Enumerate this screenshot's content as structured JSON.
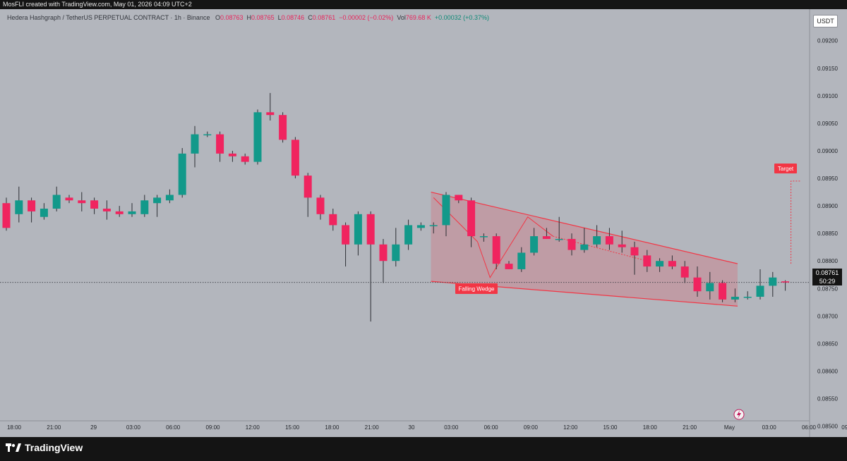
{
  "header": {
    "created_text": "MosFLI created with TradingView.com, May 01, 2026 04:09 UTC+2"
  },
  "legend": {
    "symbol": "Hedera Hashgraph / TetherUS PERPETUAL CONTRACT · 1h · Binance",
    "o_label": "O",
    "o_value": "0.08763",
    "h_label": "H",
    "h_value": "0.08765",
    "l_label": "L",
    "l_value": "0.08746",
    "c_label": "C",
    "c_value": "0.08761",
    "change": "−0.00002 (−0.02%)",
    "vol_label": "Vol",
    "vol_value": "769.68 K",
    "extra": "+0.00032 (+0.37%)"
  },
  "currency_button": "USDT",
  "price_tag": {
    "price": "0.08761",
    "countdown": "50:29"
  },
  "brand": {
    "name": "TradingView"
  },
  "colors": {
    "up": "#12998a",
    "down": "#f0245f",
    "wedge_line": "#f23645",
    "background": "#b3b6bd"
  },
  "chart_data": {
    "type": "candlestick",
    "y_ticks": [
      "0.09200",
      "0.09150",
      "0.09100",
      "0.09050",
      "0.09000",
      "0.08950",
      "0.08900",
      "0.08850",
      "0.08800",
      "0.08750",
      "0.08700",
      "0.08650",
      "0.08600",
      "0.08550",
      "0.08500"
    ],
    "x_ticks": [
      "18:00",
      "21:00",
      "29",
      "03:00",
      "06:00",
      "09:00",
      "12:00",
      "15:00",
      "18:00",
      "21:00",
      "30",
      "03:00",
      "06:00",
      "09:00",
      "12:00",
      "15:00",
      "18:00",
      "21:00",
      "May",
      "03:00",
      "06:00",
      "09:00"
    ],
    "ylim": [
      0.08488,
      0.09238
    ],
    "last_price": 0.08761,
    "candles": [
      [
        0.08905,
        0.08915,
        0.08855,
        0.0886
      ],
      [
        0.08885,
        0.08935,
        0.0887,
        0.0891
      ],
      [
        0.0891,
        0.08915,
        0.0887,
        0.0889
      ],
      [
        0.0888,
        0.08905,
        0.08875,
        0.08895
      ],
      [
        0.08895,
        0.08935,
        0.0889,
        0.0892
      ],
      [
        0.08915,
        0.0892,
        0.08905,
        0.0891
      ],
      [
        0.0891,
        0.08925,
        0.0889,
        0.08905
      ],
      [
        0.0891,
        0.08915,
        0.08885,
        0.08895
      ],
      [
        0.08895,
        0.0891,
        0.08875,
        0.0889
      ],
      [
        0.0889,
        0.089,
        0.0888,
        0.08885
      ],
      [
        0.08885,
        0.08905,
        0.0888,
        0.0889
      ],
      [
        0.08885,
        0.0892,
        0.0888,
        0.0891
      ],
      [
        0.08905,
        0.0892,
        0.0888,
        0.08915
      ],
      [
        0.0891,
        0.0893,
        0.08905,
        0.0892
      ],
      [
        0.0892,
        0.09005,
        0.08915,
        0.08995
      ],
      [
        0.08995,
        0.09045,
        0.0897,
        0.0903
      ],
      [
        0.0903,
        0.09035,
        0.09025,
        0.0903
      ],
      [
        0.0903,
        0.09035,
        0.0898,
        0.08995
      ],
      [
        0.08995,
        0.09,
        0.0898,
        0.0899
      ],
      [
        0.0899,
        0.08995,
        0.08975,
        0.0898
      ],
      [
        0.0898,
        0.09075,
        0.08975,
        0.0907
      ],
      [
        0.0907,
        0.09105,
        0.09055,
        0.09065
      ],
      [
        0.09065,
        0.0907,
        0.09015,
        0.0902
      ],
      [
        0.0902,
        0.09025,
        0.0895,
        0.08955
      ],
      [
        0.08955,
        0.0896,
        0.0888,
        0.08915
      ],
      [
        0.08915,
        0.0892,
        0.08875,
        0.08885
      ],
      [
        0.08885,
        0.08895,
        0.08855,
        0.08865
      ],
      [
        0.08865,
        0.0887,
        0.0879,
        0.0883
      ],
      [
        0.0883,
        0.0889,
        0.0881,
        0.08885
      ],
      [
        0.08885,
        0.0889,
        0.0869,
        0.0883
      ],
      [
        0.0883,
        0.0884,
        0.0876,
        0.088
      ],
      [
        0.088,
        0.0886,
        0.0879,
        0.0883
      ],
      [
        0.0883,
        0.08875,
        0.0882,
        0.08865
      ],
      [
        0.0886,
        0.0887,
        0.08855,
        0.08865
      ],
      [
        0.08865,
        0.0887,
        0.0885,
        0.08865
      ],
      [
        0.08865,
        0.08925,
        0.08845,
        0.0892
      ],
      [
        0.0892,
        0.0892,
        0.08905,
        0.0891
      ],
      [
        0.0891,
        0.08915,
        0.08825,
        0.08845
      ],
      [
        0.08845,
        0.0885,
        0.08835,
        0.08845
      ],
      [
        0.08845,
        0.0885,
        0.08785,
        0.08795
      ],
      [
        0.08795,
        0.088,
        0.08785,
        0.08785
      ],
      [
        0.08785,
        0.08825,
        0.0878,
        0.08815
      ],
      [
        0.08815,
        0.0886,
        0.0881,
        0.08845
      ],
      [
        0.08845,
        0.0886,
        0.0884,
        0.0884
      ],
      [
        0.0884,
        0.0888,
        0.08835,
        0.0884
      ],
      [
        0.0884,
        0.0885,
        0.0881,
        0.0882
      ],
      [
        0.0882,
        0.0886,
        0.08815,
        0.0883
      ],
      [
        0.0883,
        0.08865,
        0.08825,
        0.08845
      ],
      [
        0.08845,
        0.0886,
        0.0882,
        0.0883
      ],
      [
        0.0883,
        0.08855,
        0.08815,
        0.08825
      ],
      [
        0.08825,
        0.08835,
        0.08775,
        0.0881
      ],
      [
        0.0881,
        0.0882,
        0.0878,
        0.0879
      ],
      [
        0.0879,
        0.08805,
        0.0878,
        0.088
      ],
      [
        0.088,
        0.0881,
        0.08785,
        0.0879
      ],
      [
        0.0879,
        0.088,
        0.0876,
        0.0877
      ],
      [
        0.0877,
        0.0879,
        0.08735,
        0.08745
      ],
      [
        0.08745,
        0.0878,
        0.0873,
        0.0876
      ],
      [
        0.0876,
        0.08765,
        0.08725,
        0.0873
      ],
      [
        0.0873,
        0.0875,
        0.08725,
        0.08735
      ],
      [
        0.08735,
        0.08745,
        0.0873,
        0.08735
      ],
      [
        0.08735,
        0.08785,
        0.0873,
        0.08755
      ],
      [
        0.08755,
        0.0878,
        0.08735,
        0.0877
      ],
      [
        0.08763,
        0.08765,
        0.08746,
        0.08761
      ]
    ],
    "annotations": {
      "pattern_label": "Falling Wedge",
      "target_label": "Target",
      "target_price": 0.08945,
      "wedge_upper": [
        [
          0.08925
        ],
        [
          0.08795
        ]
      ],
      "wedge_lower": [
        [
          0.08763
        ],
        [
          0.08718
        ]
      ]
    }
  }
}
